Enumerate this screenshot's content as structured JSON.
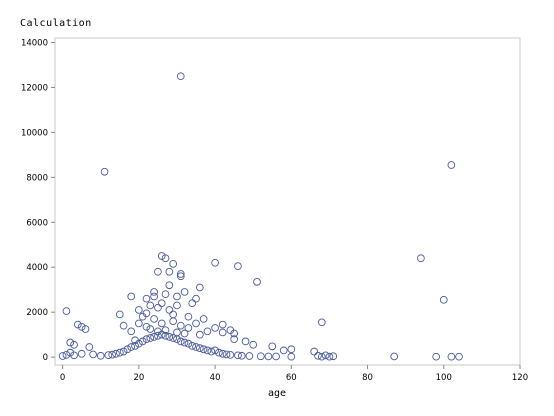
{
  "chart_data": {
    "type": "scatter",
    "title": "",
    "xlabel": "age",
    "ylabel": "Calculation",
    "xlim": [
      -2,
      120
    ],
    "ylim": [
      -350,
      14200
    ],
    "xticks": [
      0,
      20,
      40,
      60,
      80,
      100,
      120
    ],
    "yticks": [
      0,
      2000,
      4000,
      6000,
      8000,
      10000,
      12000,
      14000
    ],
    "grid": false,
    "legend": "none",
    "marker_color": "#4a5a9e",
    "series": [
      {
        "name": "",
        "x": [
          31,
          11,
          102,
          94,
          40,
          46,
          26,
          27,
          28,
          29,
          31,
          31,
          30,
          32,
          36,
          28,
          27,
          34,
          35,
          25,
          24,
          22,
          24,
          23,
          26,
          18,
          20,
          21,
          22,
          25,
          28,
          29,
          30,
          51,
          100,
          68,
          1,
          4,
          5,
          6,
          2,
          3,
          7,
          15,
          16,
          18,
          19,
          42,
          44,
          45,
          48,
          50,
          55,
          58,
          60,
          66,
          69,
          71,
          87,
          98,
          102,
          104,
          40,
          42,
          45,
          33,
          35,
          37,
          24,
          26,
          29,
          31,
          33,
          20,
          22,
          36,
          38,
          27,
          30,
          32,
          23,
          25,
          0,
          1,
          2,
          3,
          5,
          8,
          10,
          12,
          13,
          14,
          15,
          16,
          17,
          18,
          19,
          20,
          21,
          22,
          23,
          24,
          25,
          26,
          27,
          28,
          29,
          30,
          31,
          32,
          33,
          34,
          35,
          36,
          37,
          38,
          39,
          40,
          41,
          42,
          43,
          44,
          46,
          47,
          49,
          52,
          54,
          56,
          60,
          67,
          68,
          70
        ],
        "y": [
          12500,
          8250,
          8550,
          4400,
          4200,
          4050,
          4500,
          4400,
          3800,
          4150,
          3700,
          3600,
          2700,
          2900,
          3100,
          3200,
          2800,
          2400,
          2600,
          3800,
          2900,
          2600,
          2700,
          2300,
          2400,
          2700,
          2100,
          1800,
          1950,
          2200,
          2100,
          1900,
          2300,
          3350,
          2550,
          1550,
          2050,
          1450,
          1350,
          1250,
          650,
          550,
          450,
          1900,
          1400,
          1150,
          750,
          1450,
          1200,
          1050,
          700,
          550,
          480,
          300,
          350,
          250,
          80,
          40,
          30,
          20,
          20,
          20,
          1300,
          1100,
          800,
          1800,
          1500,
          1700,
          1700,
          1500,
          1600,
          1400,
          1300,
          1500,
          1350,
          1000,
          1150,
          1200,
          1100,
          1050,
          1250,
          1150,
          50,
          100,
          200,
          80,
          150,
          120,
          60,
          90,
          110,
          150,
          200,
          250,
          350,
          450,
          500,
          600,
          700,
          800,
          850,
          900,
          950,
          1000,
          950,
          900,
          850,
          800,
          700,
          650,
          600,
          500,
          450,
          400,
          350,
          300,
          250,
          300,
          200,
          150,
          120,
          100,
          80,
          60,
          50,
          40,
          30,
          30,
          20,
          60,
          20,
          20
        ]
      }
    ]
  }
}
